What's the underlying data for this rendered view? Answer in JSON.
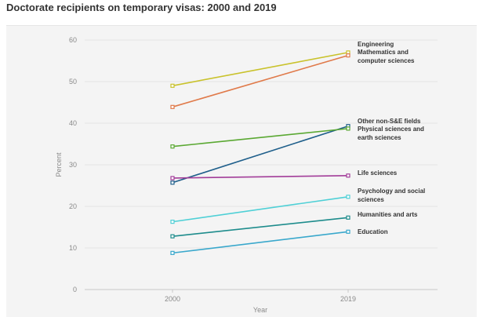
{
  "title": "Doctorate recipients on temporary visas: 2000 and 2019",
  "chart_data": {
    "type": "line",
    "xlabel": "Year",
    "ylabel": "Percent",
    "x": [
      "2000",
      "2019"
    ],
    "ylim": [
      0,
      60
    ],
    "yticks": [
      "0",
      "10",
      "20",
      "30",
      "40",
      "50",
      "60"
    ],
    "grid": "horizontal",
    "legend": "direct labels at right end of lines",
    "series": [
      {
        "label_lines": [
          "Engineering"
        ],
        "values": [
          49,
          57
        ],
        "color": "#c9c22b"
      },
      {
        "label_lines": [
          "Mathematics and",
          "computer sciences"
        ],
        "values": [
          43.9,
          56.3
        ],
        "color": "#e07a4a"
      },
      {
        "label_lines": [
          "Other non-S&E fields"
        ],
        "values": [
          25.7,
          39.3
        ],
        "color": "#1f5f8b"
      },
      {
        "label_lines": [
          "Physical sciences and",
          "earth sciences"
        ],
        "values": [
          34.4,
          38.7
        ],
        "color": "#5aa832"
      },
      {
        "label_lines": [
          "Life sciences"
        ],
        "values": [
          26.8,
          27.4
        ],
        "color": "#a23d99"
      },
      {
        "label_lines": [
          "Psychology and social",
          "sciences"
        ],
        "values": [
          16.3,
          22.3
        ],
        "color": "#4fd0d6"
      },
      {
        "label_lines": [
          "Humanities and arts"
        ],
        "values": [
          12.8,
          17.3
        ],
        "color": "#1e8c8c"
      },
      {
        "label_lines": [
          "Education"
        ],
        "values": [
          8.8,
          13.9
        ],
        "color": "#3aa8cc"
      }
    ]
  }
}
